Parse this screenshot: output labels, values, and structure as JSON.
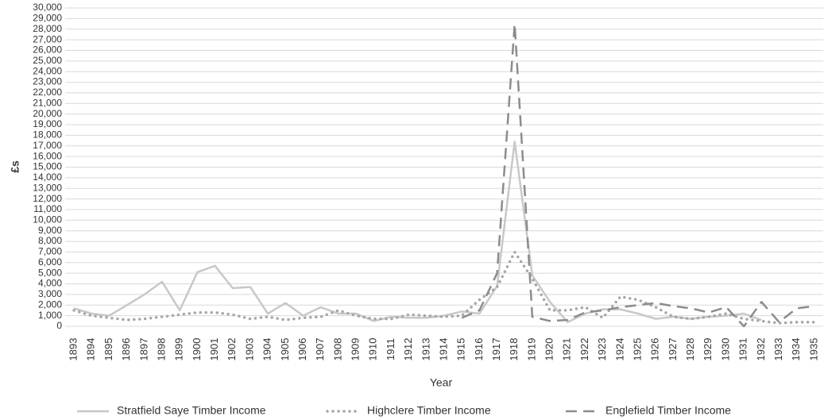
{
  "chart_data": {
    "type": "line",
    "x_label": "Year",
    "y_label": "£s",
    "categories": [
      "1893",
      "1894",
      "1895",
      "1896",
      "1897",
      "1898",
      "1899",
      "1900",
      "1901",
      "1902",
      "1903",
      "1904",
      "1905",
      "1906",
      "1907",
      "1908",
      "1909",
      "1910",
      "1911",
      "1912",
      "1913",
      "1914",
      "1915",
      "1916",
      "1917",
      "1918",
      "1919",
      "1920",
      "1921",
      "1922",
      "1923",
      "1924",
      "1925",
      "1926",
      "1927",
      "1928",
      "1929",
      "1930",
      "1931",
      "1932",
      "1933",
      "1934",
      "1935"
    ],
    "series": [
      {
        "name": "Stratfield Saye Timber Income",
        "color": "#c8c8c8",
        "style": "solid",
        "values": [
          1700,
          1200,
          1000,
          2000,
          3000,
          4200,
          1500,
          5100,
          5700,
          3600,
          3700,
          1200,
          2200,
          1000,
          1800,
          1200,
          1200,
          500,
          900,
          800,
          800,
          1000,
          1400,
          1200,
          3800,
          17400,
          4800,
          2300,
          400,
          1200,
          1600,
          1600,
          1200,
          700,
          900,
          700,
          900,
          1000,
          1200,
          600,
          null,
          null,
          null
        ]
      },
      {
        "name": "Highclere Timber Income",
        "color": "#a6a6a6",
        "style": "dotted",
        "values": [
          1500,
          1000,
          800,
          600,
          700,
          900,
          1100,
          1300,
          1300,
          1100,
          700,
          900,
          600,
          800,
          900,
          1500,
          1000,
          700,
          700,
          1100,
          1000,
          900,
          1000,
          2500,
          3700,
          7000,
          4500,
          1500,
          1500,
          1800,
          800,
          2800,
          2500,
          1800,
          900,
          700,
          900,
          1200,
          700,
          500,
          300,
          400,
          400
        ]
      },
      {
        "name": "Englefield Timber Income",
        "color": "#8c8c8c",
        "style": "dashed",
        "values": [
          null,
          null,
          null,
          null,
          null,
          null,
          null,
          null,
          null,
          null,
          null,
          null,
          null,
          null,
          null,
          null,
          null,
          null,
          null,
          null,
          null,
          null,
          800,
          1500,
          5000,
          28500,
          900,
          500,
          600,
          1300,
          1500,
          1800,
          2000,
          2200,
          1900,
          1700,
          1300,
          1800,
          0,
          2300,
          400,
          1700,
          1900
        ]
      }
    ],
    "ylim": [
      0,
      30000
    ],
    "yticks": [
      0,
      {
        "value": 1000,
        "label": "1,000"
      },
      {
        "value": 2000,
        "label": "2,000"
      },
      {
        "value": 3000,
        "label": "3,000"
      },
      {
        "value": 4000,
        "label": "4,000"
      },
      {
        "value": 5000,
        "label": "5,000"
      },
      {
        "value": 6000,
        "label": "6,000"
      },
      {
        "value": 7000,
        "label": "7,000"
      },
      {
        "value": 8000,
        "label": "8,000"
      },
      {
        "value": 9000,
        "label": "9,000"
      },
      {
        "value": 10000,
        "label": "10,000"
      },
      {
        "value": 11000,
        "label": "11,000"
      },
      {
        "value": 12000,
        "label": "12,000"
      },
      {
        "value": 13000,
        "label": "13,000"
      },
      {
        "value": 14000,
        "label": "14,000"
      },
      {
        "value": 15000,
        "label": "15,000"
      },
      {
        "value": 16000,
        "label": "16,000"
      },
      {
        "value": 17000,
        "label": "17,000"
      },
      {
        "value": 18000,
        "label": "18,000"
      },
      {
        "value": 19000,
        "label": "19,000"
      },
      {
        "value": 20000,
        "label": "20,000"
      },
      {
        "value": 21000,
        "label": "21,000"
      },
      {
        "value": 22000,
        "label": "22,000"
      },
      {
        "value": 23000,
        "label": "23,000"
      },
      {
        "value": 24000,
        "label": "24,000"
      },
      {
        "value": 25000,
        "label": "25,000"
      },
      {
        "value": 26000,
        "label": "26,000"
      },
      {
        "value": 27000,
        "label": "27,000"
      },
      {
        "value": 28000,
        "label": "28,000"
      },
      {
        "value": 29000,
        "label": "29,000"
      },
      {
        "value": 30000,
        "label": "30,000"
      }
    ],
    "grid": true
  }
}
